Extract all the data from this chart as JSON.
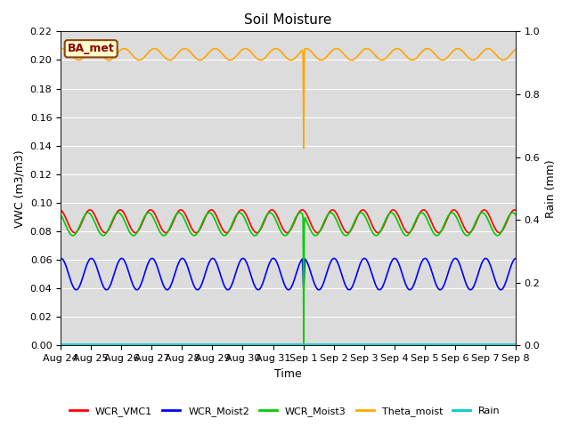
{
  "title": "Soil Moisture",
  "ylabel_left": "VWC (m3/m3)",
  "ylabel_right": "Rain (mm)",
  "xlabel": "Time",
  "plot_bg_color": "#dcdcdc",
  "fig_bg_color": "#ffffff",
  "ylim_left": [
    0.0,
    0.22
  ],
  "ylim_right": [
    0.0,
    1.0
  ],
  "annotation_text": "BA_met",
  "annotation_bg": "#ffffcc",
  "annotation_border": "#8b4513",
  "annotation_text_color": "#8b0000",
  "series": {
    "WCR_VMC1": {
      "color": "#ff0000",
      "lw": 1.2
    },
    "WCR_Moist2": {
      "color": "#0000ff",
      "lw": 1.2
    },
    "WCR_Moist3": {
      "color": "#00cc00",
      "lw": 1.2
    },
    "Theta_moist": {
      "color": "#ffa500",
      "lw": 1.2
    },
    "Rain": {
      "color": "#00cccc",
      "lw": 1.2
    }
  },
  "xtick_labels": [
    "Aug 24",
    "Aug 25",
    "Aug 26",
    "Aug 27",
    "Aug 28",
    "Aug 29",
    "Aug 30",
    "Aug 31",
    "Sep 1",
    "Sep 2",
    "Sep 3",
    "Sep 4",
    "Sep 5",
    "Sep 6",
    "Sep 7",
    "Sep 8"
  ],
  "yticks_left": [
    0.0,
    0.02,
    0.04,
    0.06,
    0.08,
    0.1,
    0.12,
    0.14,
    0.16,
    0.18,
    0.2,
    0.22
  ],
  "yticks_right": [
    0.0,
    0.2,
    0.4,
    0.6,
    0.8,
    1.0
  ],
  "n_days": 15,
  "pts_per_day": 48,
  "theta_base": 0.204,
  "theta_amp": 0.004,
  "red_base": 0.087,
  "red_amp": 0.008,
  "green_base": 0.085,
  "green_amp": 0.008,
  "blue_base": 0.05,
  "blue_amp": 0.011,
  "spike_day": 8,
  "theta_spike_val": 0.138,
  "green_spike_val": 0.0,
  "blue_spike_val": 0.036
}
